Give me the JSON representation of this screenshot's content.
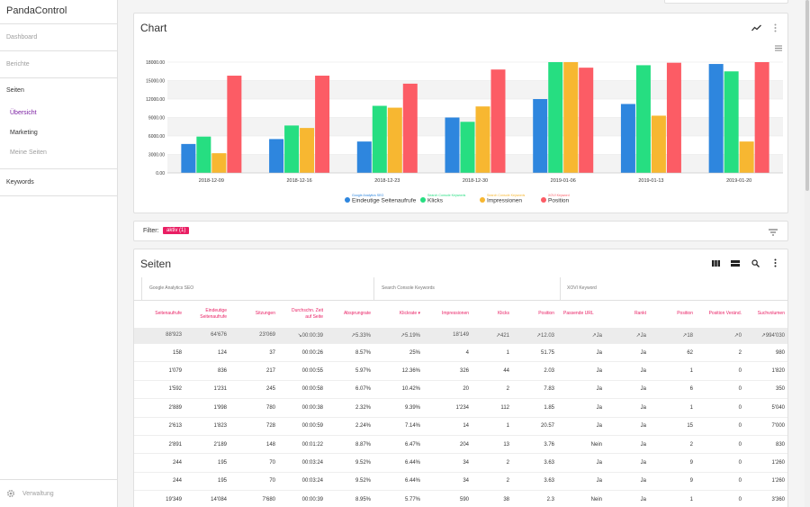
{
  "app": {
    "title": "PandaControl"
  },
  "sidebar": {
    "items": [
      {
        "label": "Dashboard"
      },
      {
        "label": "Berichte"
      }
    ],
    "group": {
      "title": "Seiten",
      "items": [
        {
          "label": "Übersicht"
        },
        {
          "label": "Marketing"
        },
        {
          "label": "Meine Seiten"
        }
      ]
    },
    "keywords": "Keywords",
    "footer": "Verwaltung"
  },
  "chart_card": {
    "title": "Chart"
  },
  "chart_data": {
    "type": "bar",
    "categories": [
      "2018-12-09",
      "2018-12-16",
      "2018-12-23",
      "2018-12-30",
      "2019-01-06",
      "2019-01-13",
      "2019-01-20"
    ],
    "yticks": [
      "0.00",
      "3000.00",
      "6000.00",
      "9000.00",
      "12000.00",
      "15000.00",
      "18000.00"
    ],
    "ylim": [
      0,
      18000
    ],
    "series": [
      {
        "group": "Google Analytics SEO",
        "name": "Eindeutige Seitenaufrufe",
        "color": "#2e86de",
        "values": [
          4700,
          5500,
          5100,
          9000,
          12000,
          11200,
          17700
        ]
      },
      {
        "group": "Search Console Keywords",
        "name": "Klicks",
        "color": "#26de81",
        "values": [
          5900,
          7700,
          10900,
          8300,
          18000,
          17500,
          16500
        ]
      },
      {
        "group": "Search Console Keywords",
        "name": "Impressionen",
        "color": "#f7b731",
        "values": [
          3200,
          7300,
          10600,
          10800,
          18000,
          9300,
          5100
        ]
      },
      {
        "group": "XOVI Keyword",
        "name": "Position",
        "color": "#fc5c65",
        "values": [
          15800,
          15800,
          14500,
          16800,
          17100,
          17900,
          18000
        ]
      }
    ],
    "legend_position": "bottom-center",
    "grid": true
  },
  "filter": {
    "label": "Filter:",
    "chip": "aktiv (1)"
  },
  "table_card": {
    "title": "Seiten",
    "groups": [
      "Google Analytics SEO",
      "Search Console Keywords",
      "XOVI Keyword"
    ],
    "columns": [
      "Seitenaufrufe",
      "Eindeutige Seitenaufrufe",
      "Sitzungen",
      "Durchschn. Zeit auf Seite",
      "Absprungrate",
      "Klickrate ▾",
      "Impressionen",
      "Klicks",
      "Position",
      "Passende URL",
      "Rankt",
      "Position",
      "Position Veränd.",
      "Suchvolumen"
    ],
    "totals": [
      "88'923",
      "64'676",
      "23'069",
      "↘00:00:39",
      "↗5.33%",
      "↗5.19%",
      "18'149",
      "↗421",
      "↗12.03",
      "↗Ja",
      "↗Ja",
      "↗18",
      "↗0",
      "↗994'030"
    ],
    "rows": [
      [
        "158",
        "124",
        "37",
        "00:00:26",
        "8.57%",
        "25%",
        "4",
        "1",
        "51.75",
        "Ja",
        "Ja",
        "62",
        "2",
        "980"
      ],
      [
        "1'079",
        "836",
        "217",
        "00:00:55",
        "5.97%",
        "12.36%",
        "326",
        "44",
        "2.03",
        "Ja",
        "Ja",
        "1",
        "0",
        "1'820"
      ],
      [
        "1'592",
        "1'231",
        "245",
        "00:00:58",
        "6.07%",
        "10.42%",
        "20",
        "2",
        "7.83",
        "Ja",
        "Ja",
        "6",
        "0",
        "350"
      ],
      [
        "2'889",
        "1'998",
        "780",
        "00:00:38",
        "2.32%",
        "9.39%",
        "1'234",
        "112",
        "1.85",
        "Ja",
        "Ja",
        "1",
        "0",
        "5'040"
      ],
      [
        "2'613",
        "1'823",
        "728",
        "00:00:59",
        "2.24%",
        "7.14%",
        "14",
        "1",
        "20.57",
        "Ja",
        "Ja",
        "15",
        "0",
        "7'000"
      ],
      [
        "2'891",
        "2'189",
        "148",
        "00:01:22",
        "8.87%",
        "6.47%",
        "204",
        "13",
        "3.76",
        "Nein",
        "Ja",
        "2",
        "0",
        "830"
      ],
      [
        "244",
        "195",
        "70",
        "00:03:24",
        "9.52%",
        "6.44%",
        "34",
        "2",
        "3.63",
        "Ja",
        "Ja",
        "9",
        "0",
        "1'260"
      ],
      [
        "244",
        "195",
        "70",
        "00:03:24",
        "9.52%",
        "6.44%",
        "34",
        "2",
        "3.63",
        "Ja",
        "Ja",
        "9",
        "0",
        "1'260"
      ],
      [
        "19'349",
        "14'084",
        "7'680",
        "00:00:39",
        "8.95%",
        "5.77%",
        "590",
        "38",
        "2.3",
        "Nein",
        "Ja",
        "1",
        "0",
        "3'360"
      ]
    ]
  }
}
